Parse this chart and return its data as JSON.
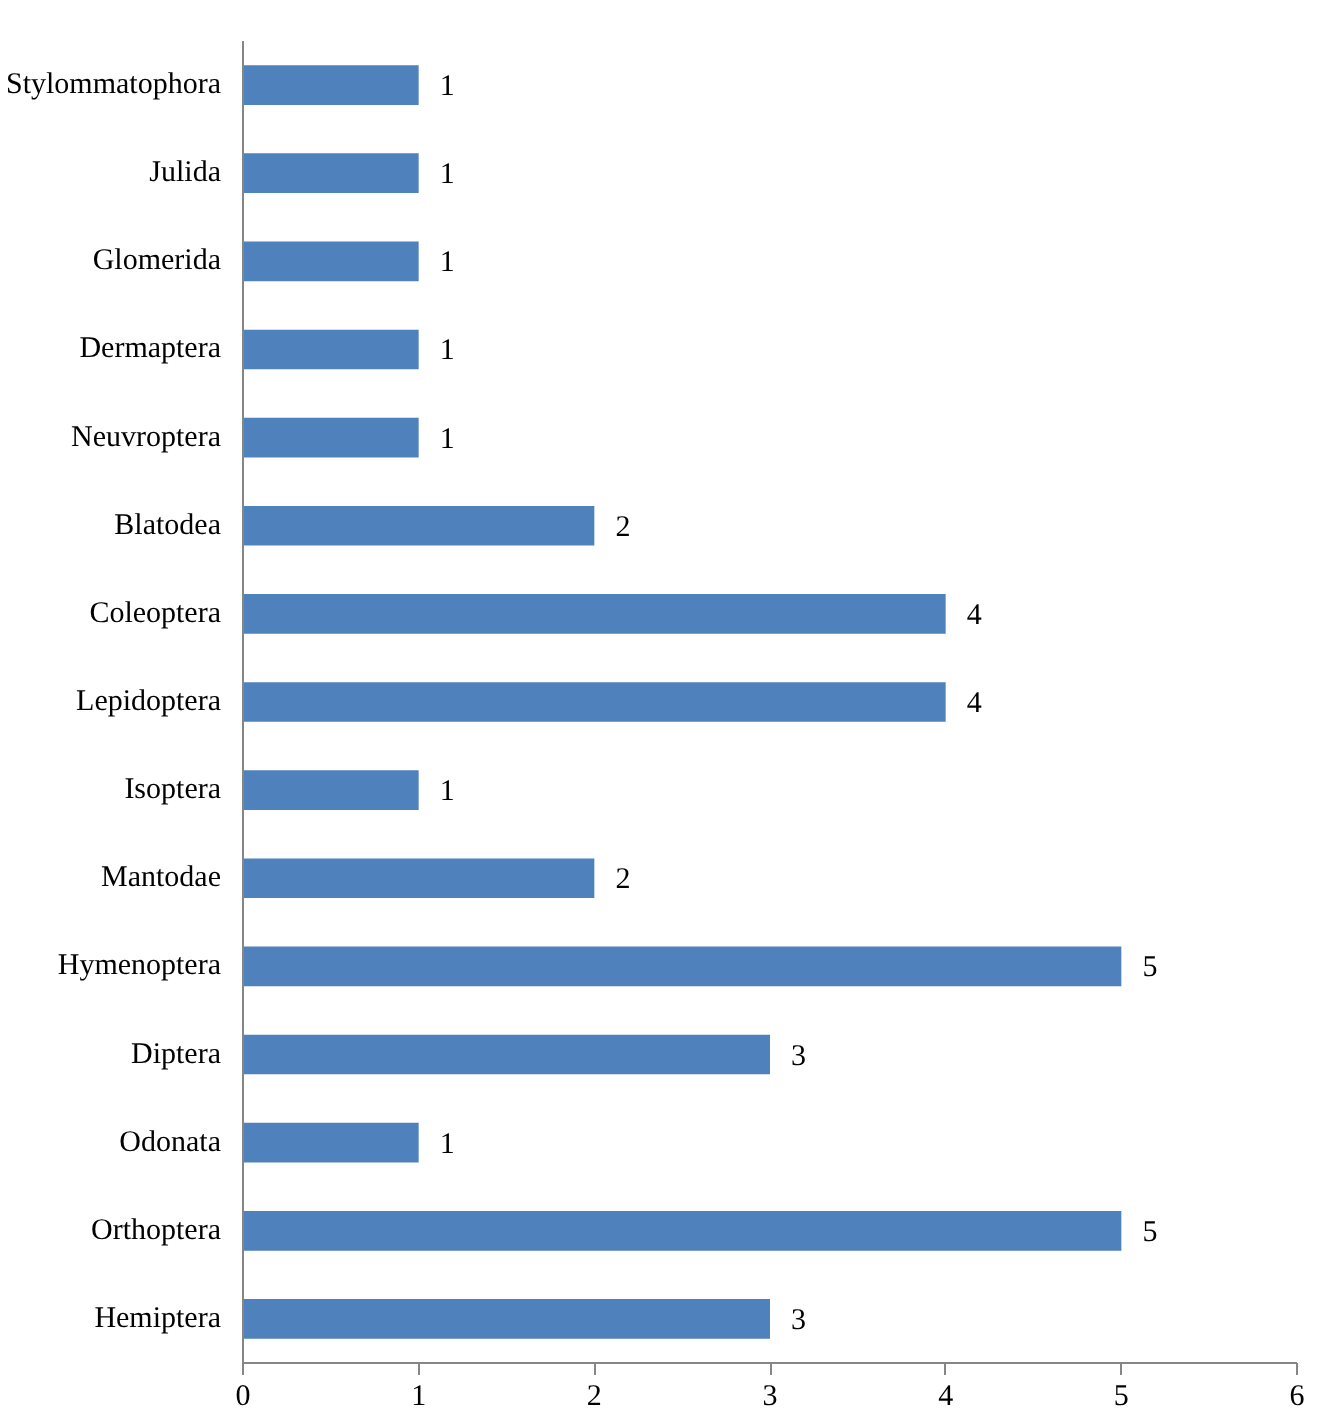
{
  "chart_data": {
    "type": "bar",
    "orientation": "horizontal",
    "categories": [
      "Stylommatophora",
      "Julida",
      "Glomerida",
      "Dermaptera",
      "Neuvroptera",
      "Blatodea",
      "Coleoptera",
      "Lepidoptera",
      "Isoptera",
      "Mantodae",
      "Hymenoptera",
      "Diptera",
      "Odonata",
      "Orthoptera",
      "Hemiptera"
    ],
    "values": [
      1,
      1,
      1,
      1,
      1,
      2,
      4,
      4,
      1,
      2,
      5,
      3,
      1,
      5,
      3
    ],
    "color": "#4f81bd",
    "xlim": [
      0,
      6
    ],
    "xticks": [
      0,
      1,
      2,
      3,
      4,
      5,
      6
    ],
    "grid": false,
    "data_labels": true
  }
}
